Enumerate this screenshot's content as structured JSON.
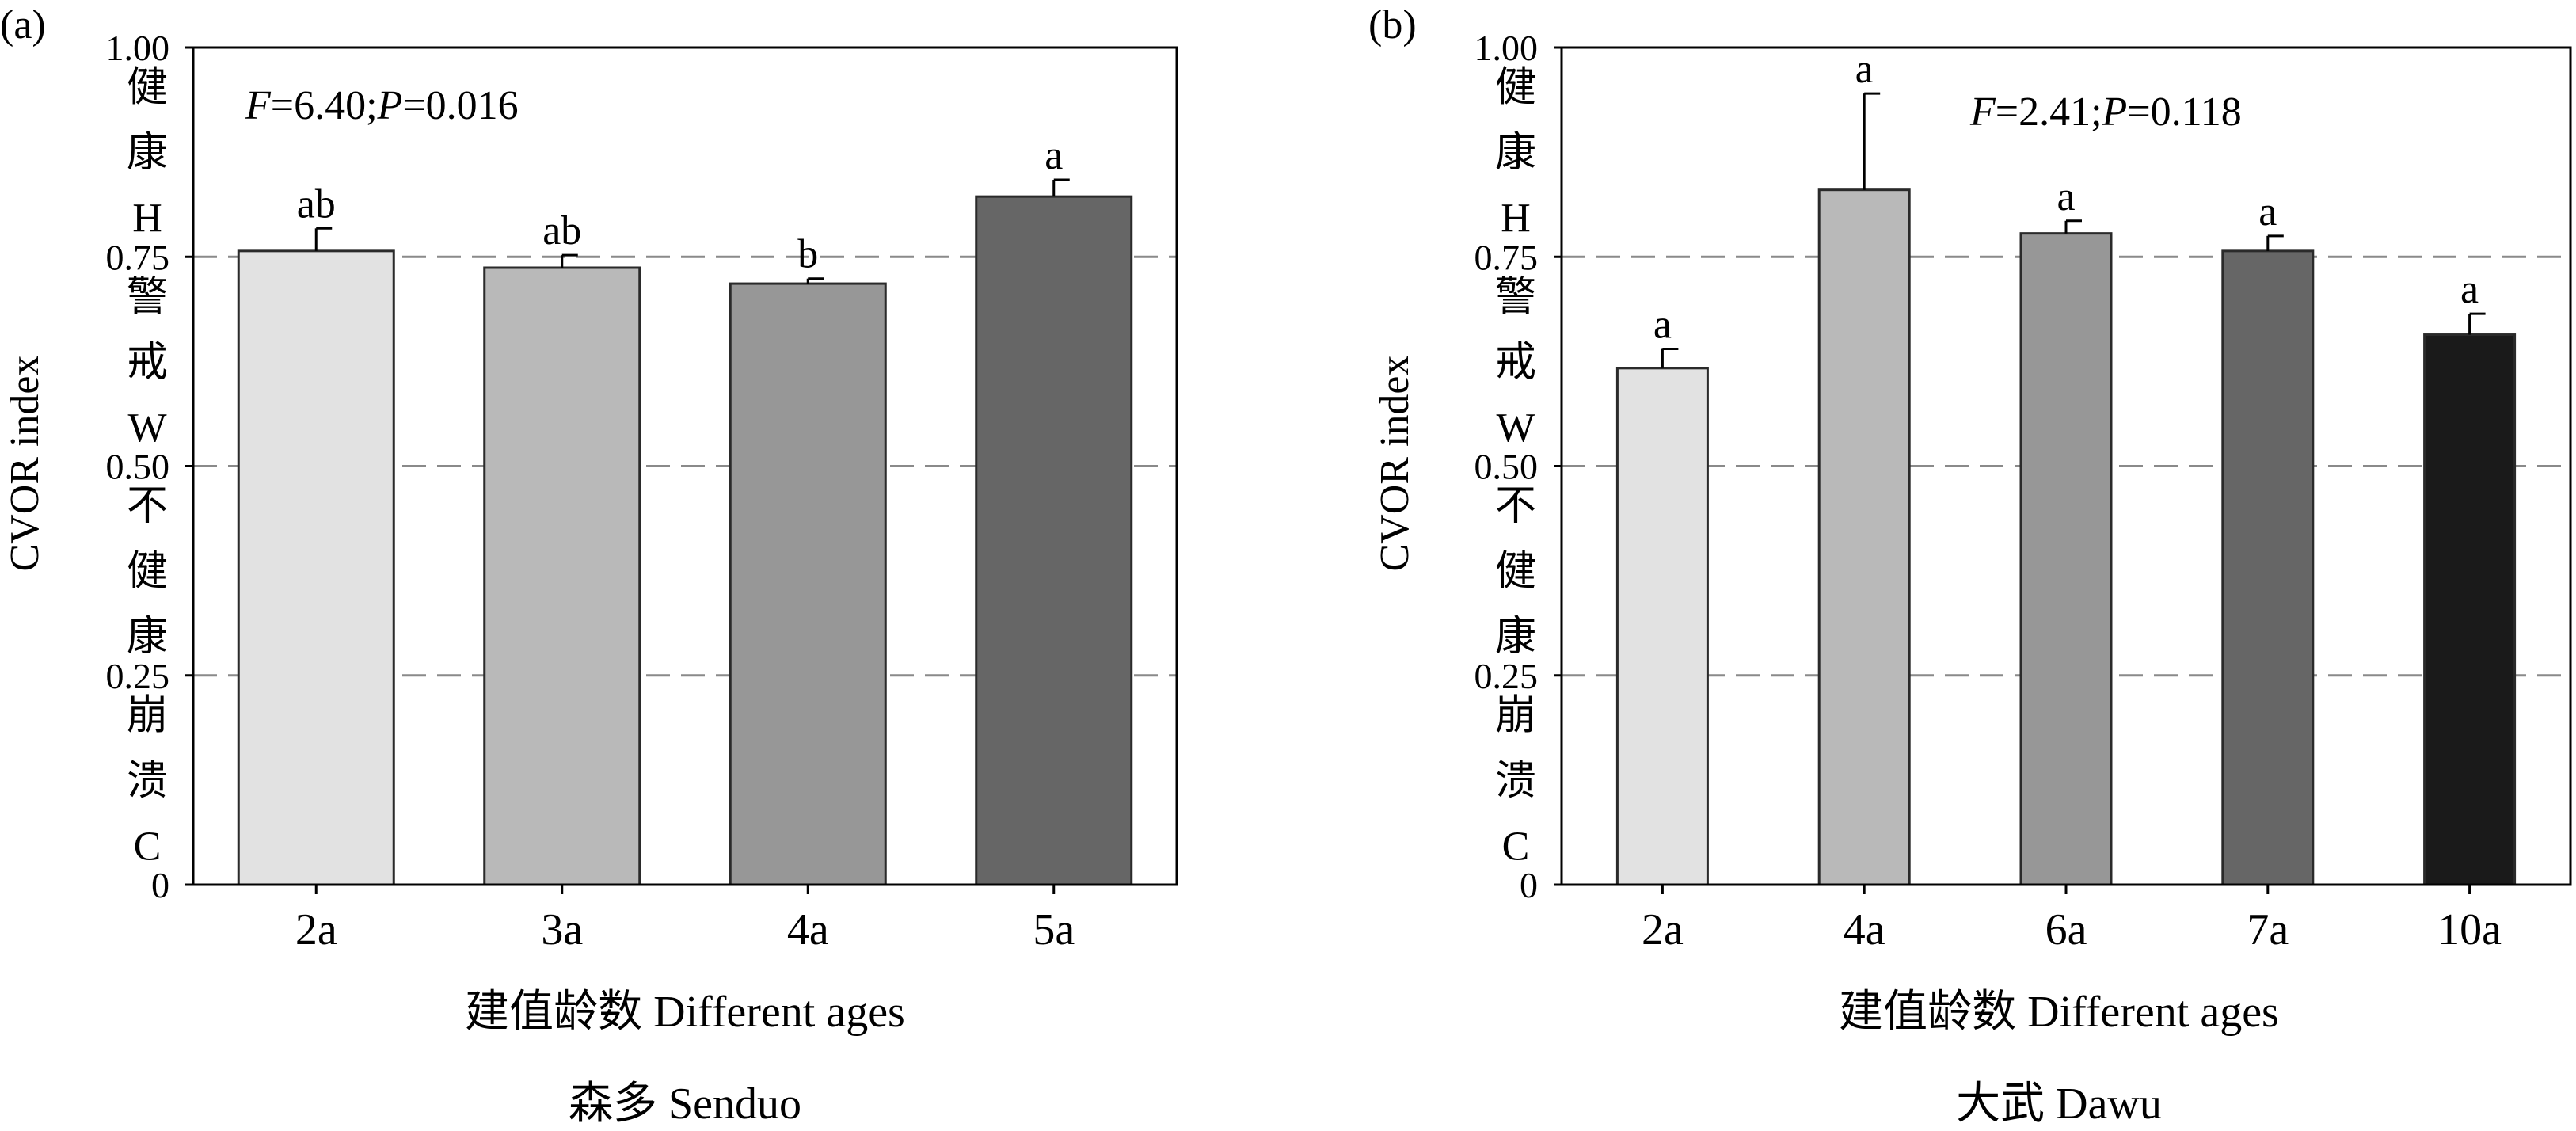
{
  "chart_data": [
    {
      "type": "bar",
      "panel_label": "(a)",
      "categories": [
        "2a",
        "3a",
        "4a",
        "5a"
      ],
      "values": [
        0.757,
        0.737,
        0.718,
        0.822
      ],
      "errors": [
        0.027,
        0.015,
        0.006,
        0.02
      ],
      "significance": [
        "ab",
        "ab",
        "b",
        "a"
      ],
      "bar_colors": [
        "#e2e2e2",
        "#b9b9b9",
        "#979797",
        "#666666"
      ],
      "stat_prefix_f": "F",
      "stat_f_value": "=6.40;",
      "stat_prefix_p": "P",
      "stat_p_value": "=0.016",
      "ylabel": "CVOR index",
      "xlabel": "建值龄数 Different ages",
      "subtitle": "森多 Senduo",
      "ylim": [
        0,
        1.0
      ],
      "yticks": [
        "0",
        "0.25",
        "0.50",
        "0.75",
        "1.00"
      ],
      "reference_lines": [
        0.25,
        0.5,
        0.75
      ],
      "health_zones": [
        {
          "chars": [
            "健",
            "康",
            "H"
          ]
        },
        {
          "chars": [
            "警",
            "戒",
            "W"
          ]
        },
        {
          "chars": [
            "不",
            "健",
            "康"
          ]
        },
        {
          "chars": [
            "崩",
            "溃",
            "C"
          ]
        }
      ]
    },
    {
      "type": "bar",
      "panel_label": "(b)",
      "categories": [
        "2a",
        "4a",
        "6a",
        "7a",
        "10a"
      ],
      "values": [
        0.617,
        0.83,
        0.778,
        0.757,
        0.657
      ],
      "errors": [
        0.023,
        0.115,
        0.015,
        0.018,
        0.025
      ],
      "significance": [
        "a",
        "a",
        "a",
        "a",
        "a"
      ],
      "bar_colors": [
        "#e2e2e2",
        "#b9b9b9",
        "#979797",
        "#666666",
        "#1a1a1a"
      ],
      "stat_prefix_f": "F",
      "stat_f_value": "=2.41;",
      "stat_prefix_p": "P",
      "stat_p_value": "=0.118",
      "ylabel": "CVOR index",
      "xlabel": "建值龄数 Different ages",
      "subtitle": "大武 Dawu",
      "ylim": [
        0,
        1.0
      ],
      "yticks": [
        "0",
        "0.25",
        "0.50",
        "0.75",
        "1.00"
      ],
      "reference_lines": [
        0.25,
        0.5,
        0.75
      ],
      "health_zones": [
        {
          "chars": [
            "健",
            "康",
            "H"
          ]
        },
        {
          "chars": [
            "警",
            "戒",
            "W"
          ]
        },
        {
          "chars": [
            "不",
            "健",
            "康"
          ]
        },
        {
          "chars": [
            "崩",
            "溃",
            "C"
          ]
        }
      ]
    }
  ]
}
